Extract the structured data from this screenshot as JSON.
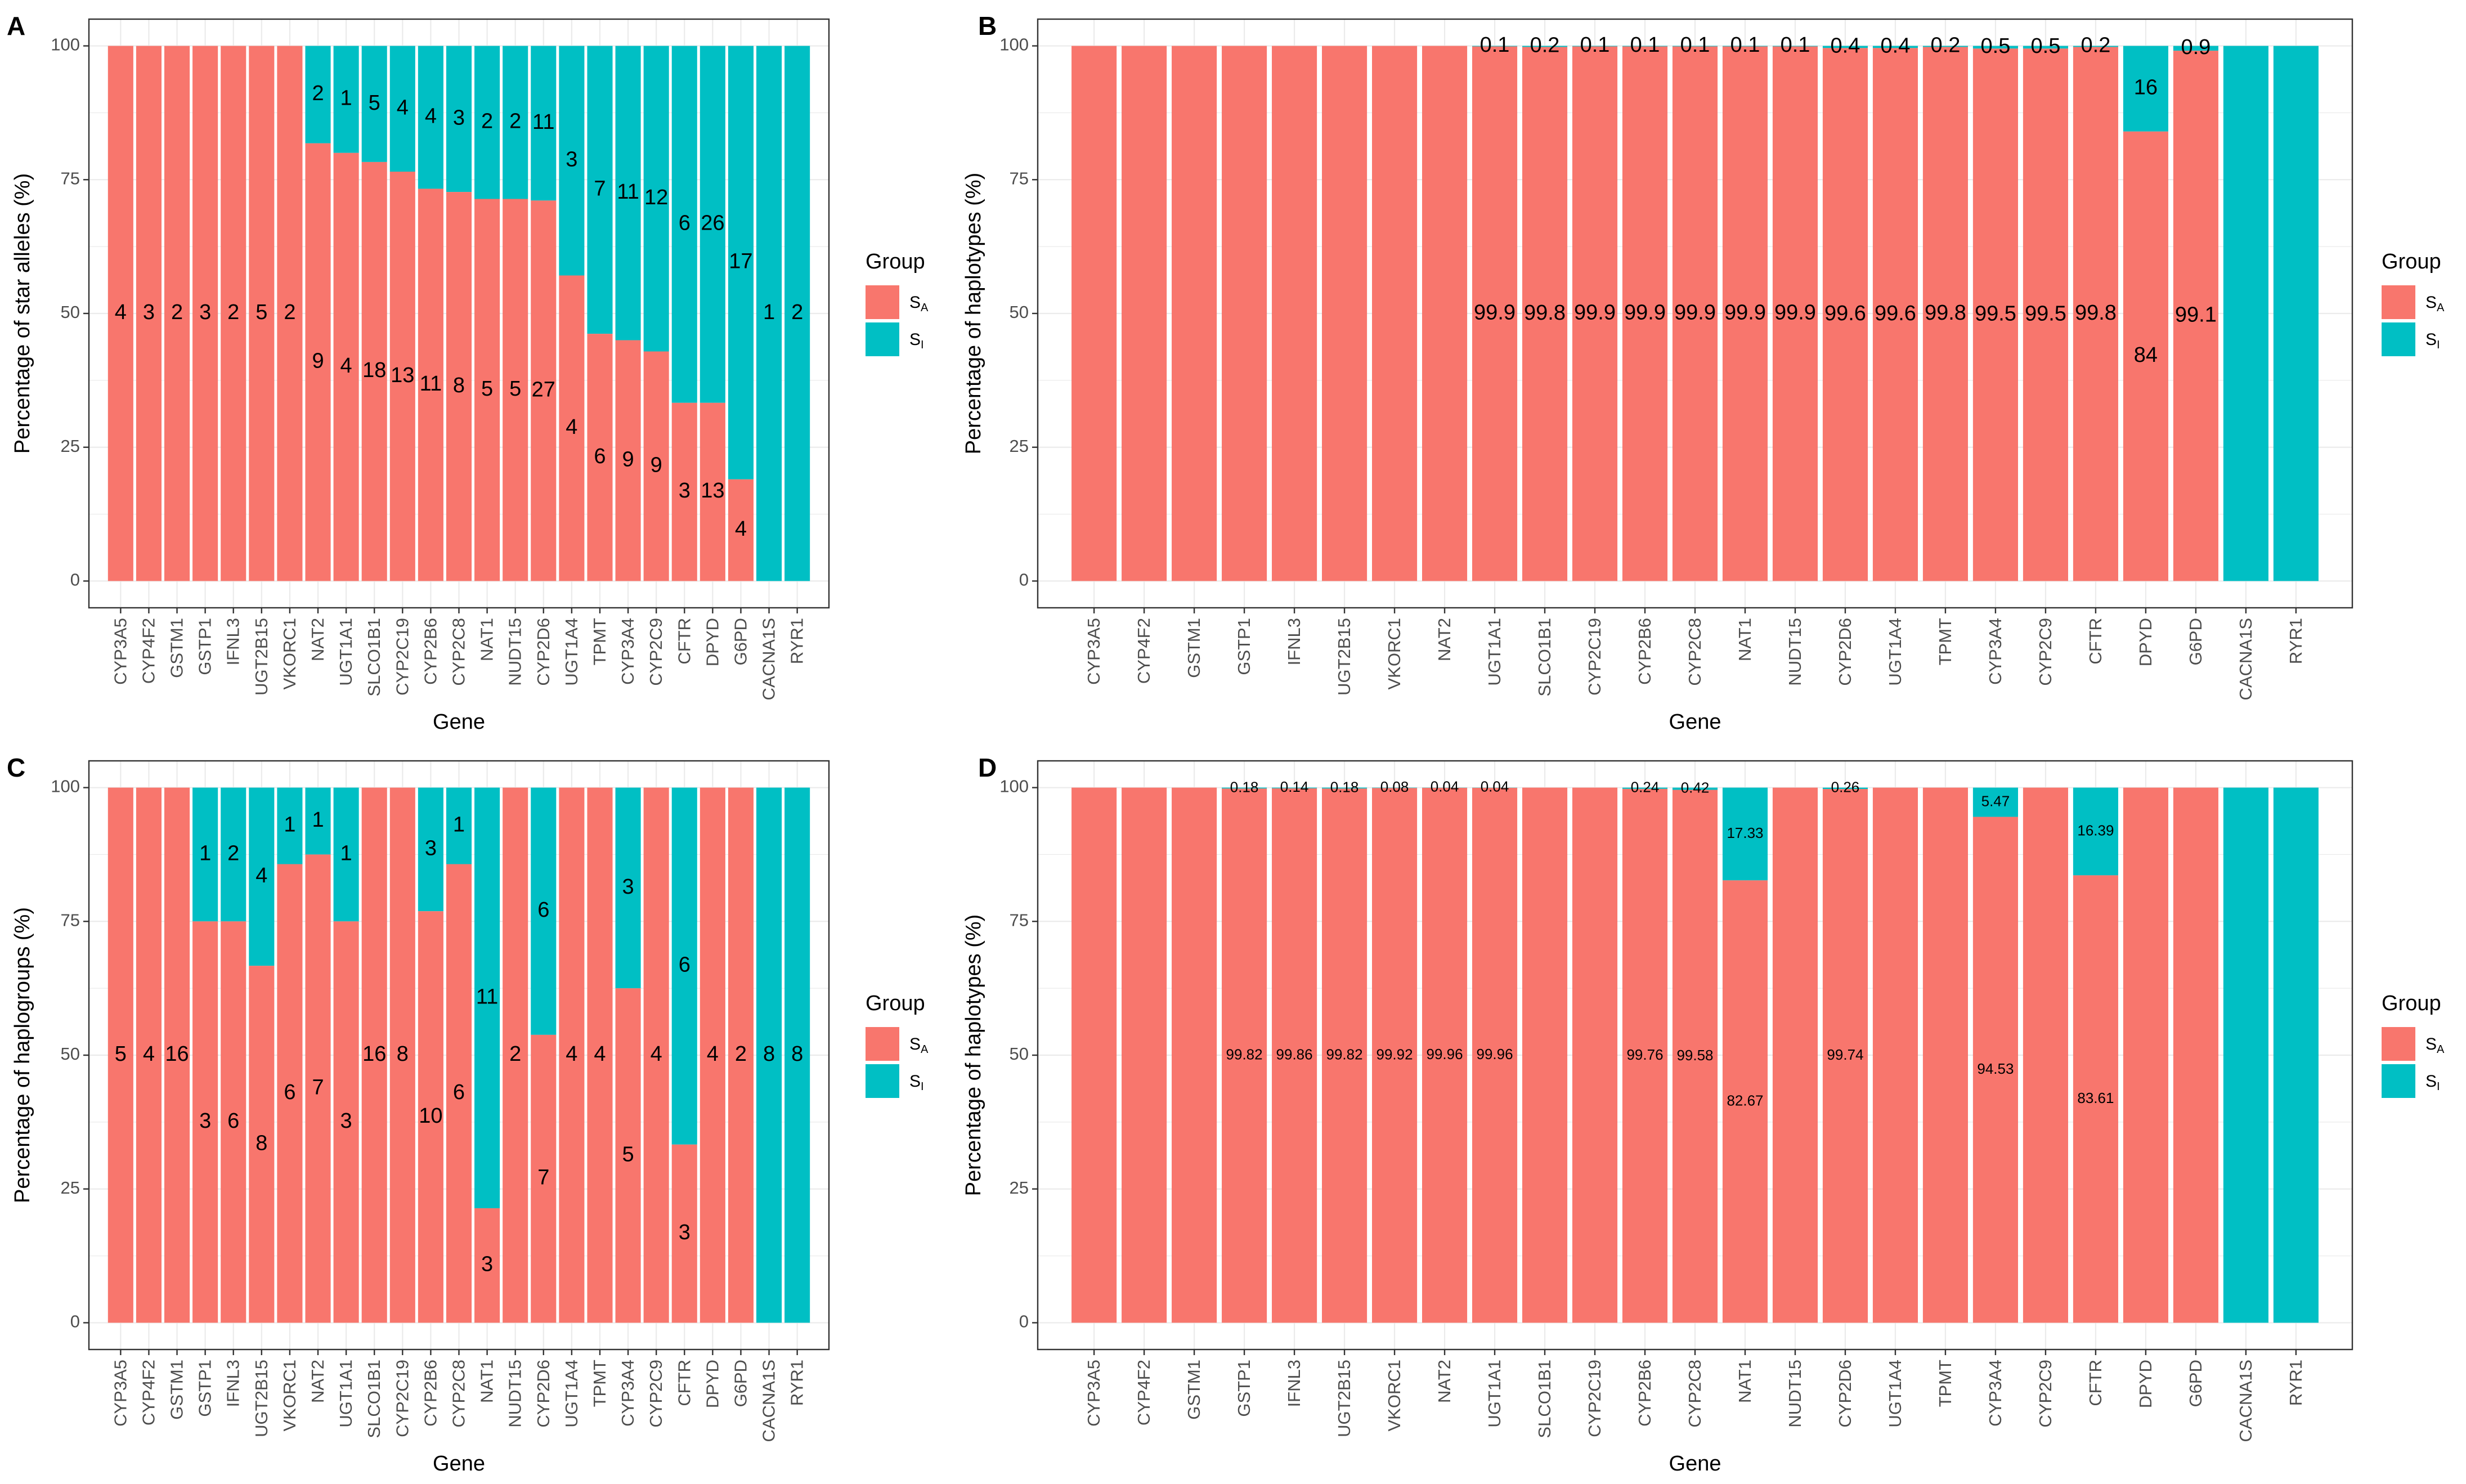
{
  "colors": {
    "sa": "#F8766D",
    "si": "#00BFC4",
    "frame": "#333333",
    "grid": "#ebebeb",
    "tick_text": "#4d4d4d"
  },
  "legend": {
    "title": "Group",
    "sa_main": "S",
    "sa_sub": "A",
    "si_main": "S",
    "si_sub": "I"
  },
  "chart_data": [
    {
      "panel": "A",
      "type": "bar",
      "stacked": true,
      "xlabel": "Gene",
      "ylabel": "Percentage of star alleles (%)",
      "ylim": [
        0,
        100
      ],
      "yticks": [
        0,
        25,
        50,
        75,
        100
      ],
      "label_size": "large",
      "categories": [
        "CYP3A5",
        "CYP4F2",
        "GSTM1",
        "GSTP1",
        "IFNL3",
        "UGT2B15",
        "VKORC1",
        "NAT2",
        "UGT1A1",
        "SLCO1B1",
        "CYP2C19",
        "CYP2B6",
        "CYP2C8",
        "NAT1",
        "NUDT15",
        "CYP2D6",
        "UGT1A4",
        "TPMT",
        "CYP3A4",
        "CYP2C9",
        "CFTR",
        "DPYD",
        "G6PD",
        "CACNA1S",
        "RYR1"
      ],
      "series": [
        {
          "name": "SA",
          "values": [
            100,
            100,
            100,
            100,
            100,
            100,
            100,
            81.8,
            80,
            78.3,
            76.5,
            73.3,
            72.7,
            71.4,
            71.4,
            71.1,
            57.1,
            46.2,
            45,
            42.9,
            33.3,
            33.3,
            19,
            0,
            0
          ],
          "labels": [
            "4",
            "3",
            "2",
            "3",
            "2",
            "5",
            "2",
            "9",
            "4",
            "18",
            "13",
            "11",
            "8",
            "5",
            "5",
            "27",
            "4",
            "6",
            "9",
            "9",
            "3",
            "13",
            "4",
            "",
            ""
          ]
        },
        {
          "name": "SI",
          "values": [
            0,
            0,
            0,
            0,
            0,
            0,
            0,
            18.2,
            20,
            21.7,
            23.5,
            26.7,
            27.3,
            28.6,
            28.6,
            28.9,
            42.9,
            53.8,
            55,
            57.1,
            66.7,
            66.7,
            81,
            100,
            100
          ],
          "labels": [
            "",
            "",
            "",
            "",
            "",
            "",
            "",
            "2",
            "1",
            "5",
            "4",
            "4",
            "3",
            "2",
            "2",
            "11",
            "3",
            "7",
            "11",
            "12",
            "6",
            "26",
            "17",
            "1",
            "2"
          ]
        }
      ]
    },
    {
      "panel": "B",
      "type": "bar",
      "stacked": true,
      "xlabel": "Gene",
      "ylabel": "Percentage of haplotypes (%)",
      "ylim": [
        0,
        100
      ],
      "yticks": [
        0,
        25,
        50,
        75,
        100
      ],
      "label_size": "large",
      "categories": [
        "CYP3A5",
        "CYP4F2",
        "GSTM1",
        "GSTP1",
        "IFNL3",
        "UGT2B15",
        "VKORC1",
        "NAT2",
        "UGT1A1",
        "SLCO1B1",
        "CYP2C19",
        "CYP2B6",
        "CYP2C8",
        "NAT1",
        "NUDT15",
        "CYP2D6",
        "UGT1A4",
        "TPMT",
        "CYP3A4",
        "CYP2C9",
        "CFTR",
        "DPYD",
        "G6PD",
        "CACNA1S",
        "RYR1"
      ],
      "series": [
        {
          "name": "SA",
          "values": [
            100,
            100,
            100,
            100,
            100,
            100,
            100,
            100,
            99.9,
            99.8,
            99.9,
            99.9,
            99.9,
            99.9,
            99.9,
            99.6,
            99.6,
            99.8,
            99.5,
            99.5,
            99.8,
            84,
            99.1,
            0,
            0
          ],
          "labels": [
            "",
            "",
            "",
            "",
            "",
            "",
            "",
            "",
            "99.9",
            "99.8",
            "99.9",
            "99.9",
            "99.9",
            "99.9",
            "99.9",
            "99.6",
            "99.6",
            "99.8",
            "99.5",
            "99.5",
            "99.8",
            "84",
            "99.1",
            "",
            ""
          ]
        },
        {
          "name": "SI",
          "values": [
            0,
            0,
            0,
            0,
            0,
            0,
            0,
            0,
            0.1,
            0.2,
            0.1,
            0.1,
            0.1,
            0.1,
            0.1,
            0.4,
            0.4,
            0.2,
            0.5,
            0.5,
            0.2,
            16,
            0.9,
            100,
            100
          ],
          "labels": [
            "",
            "",
            "",
            "",
            "",
            "",
            "",
            "",
            "0.1",
            "0.2",
            "0.1",
            "0.1",
            "0.1",
            "0.1",
            "0.1",
            "0.4",
            "0.4",
            "0.2",
            "0.5",
            "0.5",
            "0.2",
            "16",
            "0.9",
            "",
            ""
          ]
        }
      ]
    },
    {
      "panel": "C",
      "type": "bar",
      "stacked": true,
      "xlabel": "Gene",
      "ylabel": "Percentage of haplogroups (%)",
      "ylim": [
        0,
        100
      ],
      "yticks": [
        0,
        25,
        50,
        75,
        100
      ],
      "label_size": "large",
      "categories": [
        "CYP3A5",
        "CYP4F2",
        "GSTM1",
        "GSTP1",
        "IFNL3",
        "UGT2B15",
        "VKORC1",
        "NAT2",
        "UGT1A1",
        "SLCO1B1",
        "CYP2C19",
        "CYP2B6",
        "CYP2C8",
        "NAT1",
        "NUDT15",
        "CYP2D6",
        "UGT1A4",
        "TPMT",
        "CYP3A4",
        "CYP2C9",
        "CFTR",
        "DPYD",
        "G6PD",
        "CACNA1S",
        "RYR1"
      ],
      "series": [
        {
          "name": "SA",
          "values": [
            100,
            100,
            100,
            75,
            75,
            66.7,
            85.7,
            87.5,
            75,
            100,
            100,
            76.9,
            85.7,
            21.4,
            100,
            53.8,
            100,
            100,
            62.5,
            100,
            33.3,
            100,
            100,
            0,
            0
          ],
          "labels": [
            "5",
            "4",
            "16",
            "3",
            "6",
            "8",
            "6",
            "7",
            "3",
            "16",
            "8",
            "10",
            "6",
            "3",
            "2",
            "7",
            "4",
            "4",
            "5",
            "4",
            "3",
            "4",
            "2",
            "",
            ""
          ]
        },
        {
          "name": "SI",
          "values": [
            0,
            0,
            0,
            25,
            25,
            33.3,
            14.3,
            12.5,
            25,
            0,
            0,
            23.1,
            14.3,
            78.6,
            0,
            46.2,
            0,
            0,
            37.5,
            0,
            66.7,
            0,
            0,
            100,
            100
          ],
          "labels": [
            "",
            "",
            "",
            "1",
            "2",
            "4",
            "1",
            "1",
            "1",
            "",
            "",
            "3",
            "1",
            "11",
            "",
            "6",
            "",
            "",
            "3",
            "",
            "6",
            "",
            "",
            "8",
            "8"
          ]
        }
      ]
    },
    {
      "panel": "D",
      "type": "bar",
      "stacked": true,
      "xlabel": "Gene",
      "ylabel": "Percentage of haplotypes (%)",
      "ylim": [
        0,
        100
      ],
      "yticks": [
        0,
        25,
        50,
        75,
        100
      ],
      "label_size": "small",
      "categories": [
        "CYP3A5",
        "CYP4F2",
        "GSTM1",
        "GSTP1",
        "IFNL3",
        "UGT2B15",
        "VKORC1",
        "NAT2",
        "UGT1A1",
        "SLCO1B1",
        "CYP2C19",
        "CYP2B6",
        "CYP2C8",
        "NAT1",
        "NUDT15",
        "CYP2D6",
        "UGT1A4",
        "TPMT",
        "CYP3A4",
        "CYP2C9",
        "CFTR",
        "DPYD",
        "G6PD",
        "CACNA1S",
        "RYR1"
      ],
      "series": [
        {
          "name": "SA",
          "values": [
            100,
            100,
            100,
            99.82,
            99.86,
            99.82,
            99.92,
            99.96,
            99.96,
            100,
            100,
            99.76,
            99.58,
            82.67,
            100,
            99.74,
            100,
            100,
            94.53,
            100,
            83.61,
            100,
            100,
            0,
            0
          ],
          "labels": [
            "",
            "",
            "",
            "99.82",
            "99.86",
            "99.82",
            "99.92",
            "99.96",
            "99.96",
            "",
            "",
            "99.76",
            "99.58",
            "82.67",
            "",
            "99.74",
            "",
            "",
            "94.53",
            "",
            "83.61",
            "",
            "",
            "",
            ""
          ]
        },
        {
          "name": "SI",
          "values": [
            0,
            0,
            0,
            0.18,
            0.14,
            0.18,
            0.08,
            0.04,
            0.04,
            0,
            0,
            0.24,
            0.42,
            17.33,
            0,
            0.26,
            0,
            0,
            5.47,
            0,
            16.39,
            0,
            0,
            100,
            100
          ],
          "labels": [
            "",
            "",
            "",
            "0.18",
            "0.14",
            "0.18",
            "0.08",
            "0.04",
            "0.04",
            "",
            "",
            "0.24",
            "0.42",
            "17.33",
            "",
            "0.26",
            "",
            "",
            "5.47",
            "",
            "16.39",
            "",
            "",
            "",
            ""
          ]
        }
      ]
    }
  ]
}
